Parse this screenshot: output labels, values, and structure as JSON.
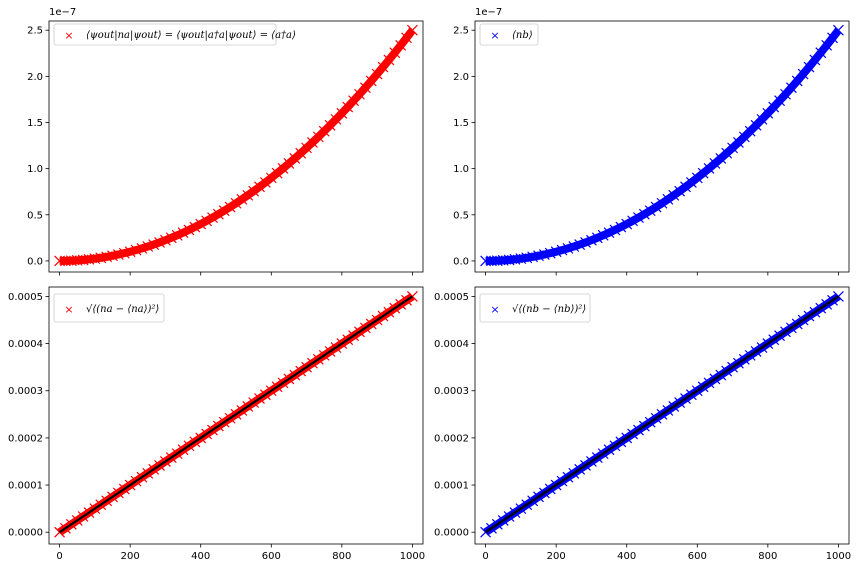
{
  "figure": {
    "shared_x_ticks": [
      "0",
      "200",
      "400",
      "600",
      "800",
      "1000"
    ]
  },
  "chart_data": [
    {
      "type": "scatter",
      "panel": "top-left",
      "marker": "x",
      "color": "#ff0000",
      "xlim": [
        -30,
        1030
      ],
      "ylim": [
        -1.2e-08,
        2.6e-07
      ],
      "y_offset_label": "1e−7",
      "x_ticks": [
        0,
        200,
        400,
        600,
        800,
        1000
      ],
      "x_tick_labels_visible": false,
      "y_ticks": [
        0,
        5e-08,
        1e-07,
        1.5e-07,
        2e-07,
        2.5e-07
      ],
      "y_tick_labels": [
        "0.0",
        "0.5",
        "1.0",
        "1.5",
        "2.0",
        "2.5"
      ],
      "legend": {
        "position": "upper-left",
        "label": "⟨ψout|na|ψout⟩ = ⟨ψout|a†a|ψout⟩ = ⟨a†a⟩"
      },
      "model": {
        "kind": "quadratic",
        "coef": 2.5e-13
      },
      "x": [
        0,
        1000
      ],
      "trend_line": false
    },
    {
      "type": "scatter",
      "panel": "top-right",
      "marker": "x",
      "color": "#0000ff",
      "xlim": [
        -30,
        1030
      ],
      "ylim": [
        -1.2e-08,
        2.6e-07
      ],
      "y_offset_label": "1e−7",
      "x_ticks": [
        0,
        200,
        400,
        600,
        800,
        1000
      ],
      "x_tick_labels_visible": false,
      "y_ticks": [
        0,
        5e-08,
        1e-07,
        1.5e-07,
        2e-07,
        2.5e-07
      ],
      "y_tick_labels": [
        "0.0",
        "0.5",
        "1.0",
        "1.5",
        "2.0",
        "2.5"
      ],
      "legend": {
        "position": "upper-left",
        "label": "⟨nb⟩"
      },
      "model": {
        "kind": "quadratic",
        "coef": 2.5e-13
      },
      "x": [
        0,
        1000
      ],
      "trend_line": false
    },
    {
      "type": "scatter",
      "panel": "bottom-left",
      "marker": "x",
      "color": "#ff0000",
      "xlim": [
        -30,
        1030
      ],
      "ylim": [
        -2.5e-05,
        0.00052
      ],
      "x_ticks": [
        0,
        200,
        400,
        600,
        800,
        1000
      ],
      "x_tick_labels_visible": true,
      "y_ticks": [
        0,
        0.0001,
        0.0002,
        0.0003,
        0.0004,
        0.0005
      ],
      "y_tick_labels": [
        "0.0000",
        "0.0001",
        "0.0002",
        "0.0003",
        "0.0004",
        "0.0005"
      ],
      "legend": {
        "position": "upper-left",
        "label": "√⟨(na − ⟨na⟩)²⟩"
      },
      "model": {
        "kind": "linear",
        "coef": 5e-07
      },
      "x": [
        0,
        1000
      ],
      "trend_line": true
    },
    {
      "type": "scatter",
      "panel": "bottom-right",
      "marker": "x",
      "color": "#0000ff",
      "xlim": [
        -30,
        1030
      ],
      "ylim": [
        -2.5e-05,
        0.00052
      ],
      "x_ticks": [
        0,
        200,
        400,
        600,
        800,
        1000
      ],
      "x_tick_labels_visible": true,
      "y_ticks": [
        0,
        0.0001,
        0.0002,
        0.0003,
        0.0004,
        0.0005
      ],
      "y_tick_labels": [
        "0.0000",
        "0.0001",
        "0.0002",
        "0.0003",
        "0.0004",
        "0.0005"
      ],
      "legend": {
        "position": "upper-left",
        "label": "√⟨(nb − ⟨nb⟩)²⟩"
      },
      "model": {
        "kind": "linear",
        "coef": 5e-07
      },
      "x": [
        0,
        1000
      ],
      "trend_line": true
    }
  ]
}
